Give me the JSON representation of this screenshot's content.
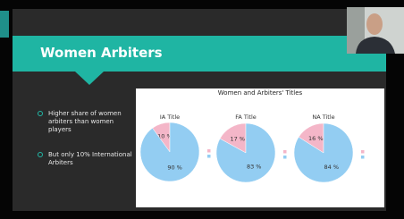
{
  "slide": {
    "title": "Women Arbiters",
    "bullets": [
      "Higher share of women arbiters than women players",
      "But only 10% International Arbiters"
    ]
  },
  "chart_title": "Women and Arbiters' Titles",
  "chart_data": [
    {
      "type": "pie",
      "title": "IA Title",
      "categories": [
        null,
        null
      ],
      "values": [
        10,
        90
      ],
      "value_labels": [
        "10 %",
        "90 %"
      ],
      "colors": [
        "#f4b6c8",
        "#93cdf2"
      ]
    },
    {
      "type": "pie",
      "title": "FA Title",
      "categories": [
        null,
        null
      ],
      "values": [
        17,
        83
      ],
      "value_labels": [
        "17 %",
        "83 %"
      ],
      "colors": [
        "#f4b6c8",
        "#93cdf2"
      ]
    },
    {
      "type": "pie",
      "title": "NA Title",
      "categories": [
        null,
        null
      ],
      "values": [
        16,
        84
      ],
      "value_labels": [
        "16 %",
        "84 %"
      ],
      "colors": [
        "#f4b6c8",
        "#93cdf2"
      ]
    }
  ]
}
